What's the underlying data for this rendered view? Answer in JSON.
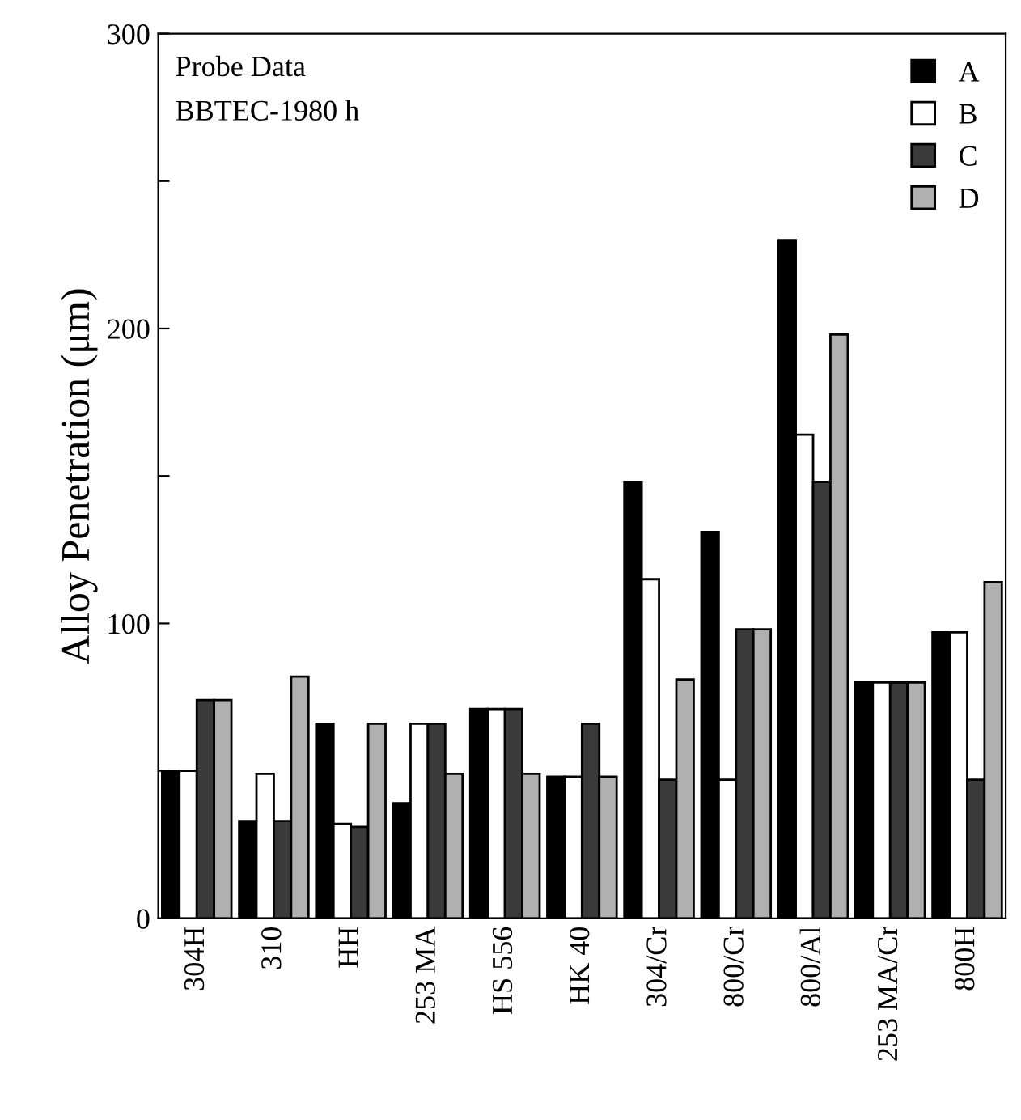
{
  "chart_data": {
    "type": "bar",
    "ylabel": "Alloy Penetration (μm)",
    "annotations": [
      "Probe Data",
      "BBTEC-1980 h"
    ],
    "categories": [
      "304H",
      "310",
      "HH",
      "253 MA",
      "HS 556",
      "HK 40",
      "304/Cr",
      "800/Cr",
      "800/Al",
      "253 MA/Cr",
      "800H"
    ],
    "series": [
      {
        "name": "A",
        "color": "#000000",
        "values": [
          50,
          33,
          66,
          39,
          71,
          48,
          148,
          131,
          230,
          80,
          97
        ]
      },
      {
        "name": "B",
        "color": "#ffffff",
        "values": [
          50,
          49,
          32,
          66,
          71,
          48,
          115,
          47,
          164,
          80,
          97
        ]
      },
      {
        "name": "C",
        "color": "#3a3a3a",
        "values": [
          74,
          33,
          31,
          66,
          71,
          66,
          47,
          98,
          148,
          80,
          47
        ]
      },
      {
        "name": "D",
        "color": "#b0b0b0",
        "values": [
          74,
          82,
          66,
          49,
          49,
          48,
          81,
          98,
          198,
          80,
          114
        ]
      }
    ],
    "ylim": [
      0,
      300
    ],
    "yticks": [
      0,
      {
        "value": 50,
        "label": null
      },
      100,
      {
        "value": 150,
        "label": null
      },
      200,
      {
        "value": 250,
        "label": null
      },
      300
    ],
    "grid": false,
    "legend": "top right"
  }
}
